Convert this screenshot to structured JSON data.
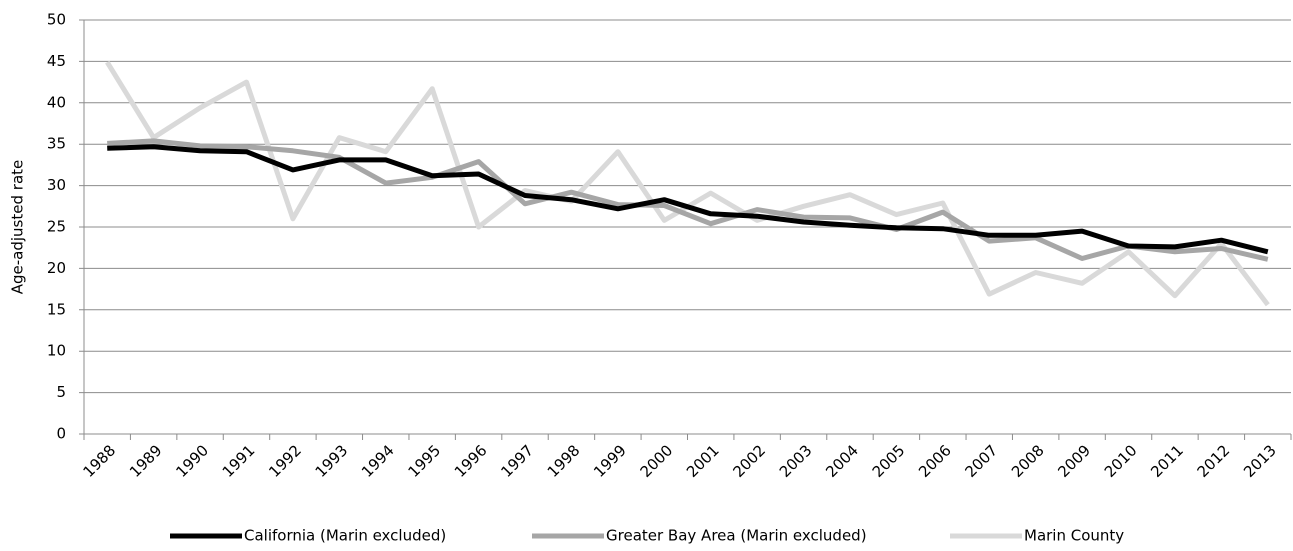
{
  "chart_data": {
    "type": "line",
    "y_label": "Age-adjusted rate",
    "categories": [
      "1988",
      "1989",
      "1990",
      "1991",
      "1992",
      "1993",
      "1994",
      "1995",
      "1996",
      "1997",
      "1998",
      "1999",
      "2000",
      "2001",
      "2002",
      "2003",
      "2004",
      "2005",
      "2006",
      "2007",
      "2008",
      "2009",
      "2010",
      "2011",
      "2012",
      "2013"
    ],
    "series": [
      {
        "name": "California (Marin excluded)",
        "color": "#000000",
        "values": [
          34.5,
          34.7,
          34.2,
          34.1,
          31.9,
          33.1,
          33.1,
          31.2,
          31.4,
          28.8,
          28.3,
          27.2,
          28.3,
          26.6,
          26.3,
          25.6,
          25.2,
          24.9,
          24.8,
          24.0,
          24.0,
          24.5,
          22.7,
          22.6,
          23.4,
          22.0
        ]
      },
      {
        "name": "Greater Bay Area (Marin excluded)",
        "color": "#a6a6a6",
        "values": [
          35.1,
          35.4,
          34.8,
          34.7,
          34.2,
          33.4,
          30.3,
          31.0,
          32.9,
          27.8,
          29.2,
          27.7,
          27.6,
          25.4,
          27.1,
          26.2,
          26.1,
          24.7,
          26.8,
          23.3,
          23.7,
          21.2,
          22.7,
          22.0,
          22.4,
          21.1
        ]
      },
      {
        "name": "Marin County",
        "color": "#d9d9d9",
        "values": [
          44.9,
          35.8,
          39.4,
          42.5,
          26.0,
          35.8,
          34.1,
          41.7,
          25.0,
          29.4,
          28.1,
          34.1,
          25.8,
          29.1,
          25.8,
          27.5,
          28.9,
          26.5,
          27.9,
          16.9,
          19.5,
          18.2,
          22.0,
          16.7,
          23.0,
          15.6
        ]
      }
    ],
    "ylim": [
      0,
      50
    ],
    "yticks": [
      0,
      5,
      10,
      15,
      20,
      25,
      30,
      35,
      40,
      45,
      50
    ],
    "grid": true,
    "legend": "bottom"
  }
}
